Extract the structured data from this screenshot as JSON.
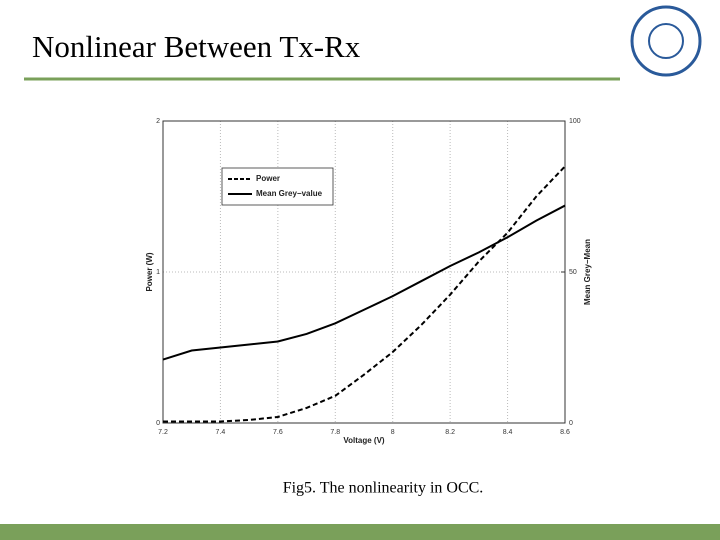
{
  "slide": {
    "title": "Nonlinear Between Tx-Rx",
    "caption": "Fig5. The nonlinearity in OCC."
  },
  "chart_data": {
    "type": "line",
    "x_label": "Voltage (V)",
    "y_label": "Power (W)",
    "y2_label": "Mean Grey−Mean",
    "x": [
      7.2,
      7.3,
      7.4,
      7.5,
      7.6,
      7.7,
      7.8,
      7.9,
      8.0,
      8.1,
      8.2,
      8.3,
      8.4,
      8.5,
      8.6
    ],
    "series": [
      {
        "name": "Power",
        "color": "#000000",
        "dash": true,
        "values": [
          0.01,
          0.01,
          0.01,
          0.02,
          0.04,
          0.1,
          0.18,
          0.32,
          0.47,
          0.65,
          0.85,
          1.07,
          1.26,
          1.5,
          1.7
        ]
      },
      {
        "name": "Mean Grey−value",
        "color": "#000000",
        "dash": false,
        "axis": "y2",
        "values": [
          21,
          24,
          25,
          26,
          27,
          29.5,
          33,
          37.5,
          42,
          47,
          52,
          56.5,
          61.5,
          67,
          72
        ]
      }
    ],
    "xlim": [
      7.2,
      8.6
    ],
    "xticks": [
      7.2,
      7.4,
      7.6,
      7.8,
      8,
      8.2,
      8.4,
      8.6
    ],
    "ylim": [
      0,
      2
    ],
    "yticks": [
      0,
      1,
      2
    ],
    "y2lim": [
      0,
      100
    ],
    "y2ticks": [
      0,
      50,
      100
    ],
    "grid": true,
    "legend": "upper-left"
  }
}
